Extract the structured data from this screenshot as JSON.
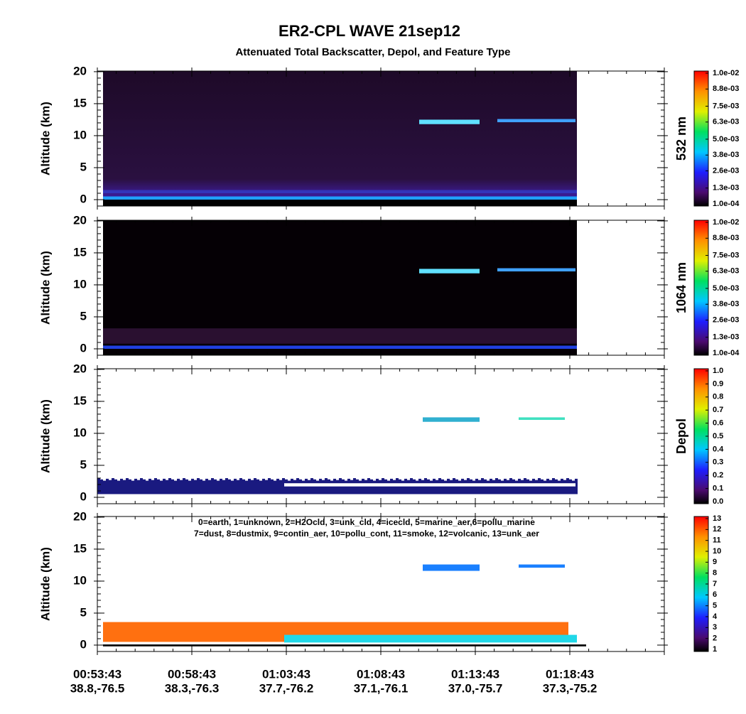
{
  "title": "ER2-CPL  WAVE  21sep12",
  "subtitle": "Attenuated Total Backscatter, Depol, and Feature Type",
  "x_times": [
    "00:53:43",
    "00:58:43",
    "01:03:43",
    "01:08:43",
    "01:13:43",
    "01:18:43"
  ],
  "x_locations": [
    "38.8,-76.5",
    "38.3,-76.3",
    "37.7,-76.2",
    "37.1,-76.1",
    "37.0,-75.7",
    "37.3,-75.2"
  ],
  "chart_data": [
    {
      "type": "heatmap",
      "ylabel": "Altitude (km)",
      "ylim": [
        -1,
        20.1
      ],
      "yticks": [
        0,
        5,
        10,
        15,
        20
      ],
      "colorbar": {
        "label": "532 nm",
        "lim": [
          0.0001,
          0.01
        ],
        "ticks": [
          {
            "value": 0.0001,
            "label": "1.0e-04"
          },
          {
            "value": 0.0013,
            "label": "1.3e-03"
          },
          {
            "value": 0.0026,
            "label": "2.6e-03"
          },
          {
            "value": 0.0038,
            "label": "3.8e-03"
          },
          {
            "value": 0.005,
            "label": "5.0e-03"
          },
          {
            "value": 0.0063,
            "label": "6.3e-03"
          },
          {
            "value": 0.0075,
            "label": "7.5e-03"
          },
          {
            "value": 0.0088,
            "label": "8.8e-03"
          },
          {
            "value": 0.01,
            "label": "1.0e-02"
          }
        ]
      }
    },
    {
      "type": "heatmap",
      "ylabel": "Altitude (km)",
      "ylim": [
        -1,
        20.1
      ],
      "yticks": [
        0,
        5,
        10,
        15,
        20
      ],
      "colorbar": {
        "label": "1064 nm",
        "lim": [
          0.0001,
          0.01
        ],
        "ticks": [
          {
            "value": 0.0001,
            "label": "1.0e-04"
          },
          {
            "value": 0.0013,
            "label": "1.3e-03"
          },
          {
            "value": 0.0026,
            "label": "2.6e-03"
          },
          {
            "value": 0.0038,
            "label": "3.8e-03"
          },
          {
            "value": 0.005,
            "label": "5.0e-03"
          },
          {
            "value": 0.0063,
            "label": "6.3e-03"
          },
          {
            "value": 0.0075,
            "label": "7.5e-03"
          },
          {
            "value": 0.0088,
            "label": "8.8e-03"
          },
          {
            "value": 0.01,
            "label": "1.0e-02"
          }
        ]
      }
    },
    {
      "type": "heatmap",
      "ylabel": "Altitude (km)",
      "ylim": [
        -1,
        20.1
      ],
      "yticks": [
        0,
        5,
        10,
        15,
        20
      ],
      "colorbar": {
        "label": "Depol",
        "lim": [
          0,
          1
        ],
        "ticks": [
          {
            "value": 0,
            "label": "0.0"
          },
          0.1,
          0.2,
          0.3,
          0.4,
          0.5,
          0.6,
          0.7,
          0.8,
          0.9,
          {
            "value": 1,
            "label": "1.0"
          }
        ]
      }
    },
    {
      "type": "heatmap",
      "ylabel": "Altitude (km)",
      "ylim": [
        -1,
        20.1
      ],
      "yticks": [
        0,
        5,
        10,
        15,
        20
      ],
      "legend": [
        "0=earth, 1=unknown, 2=H2Ocld, 3=unk_cld, 4=icecld, 5=marine_aer,6=pollu_marine",
        "7=dust, 8=dustmix, 9=contin_aer, 10=pollu_cont, 11=smoke, 12=volcanic, 13=unk_aer"
      ],
      "colorbar": {
        "lim": [
          1,
          13
        ],
        "ticks": [
          1,
          2,
          3,
          4,
          5,
          6,
          7,
          8,
          9,
          10,
          11,
          12,
          13
        ]
      }
    }
  ]
}
